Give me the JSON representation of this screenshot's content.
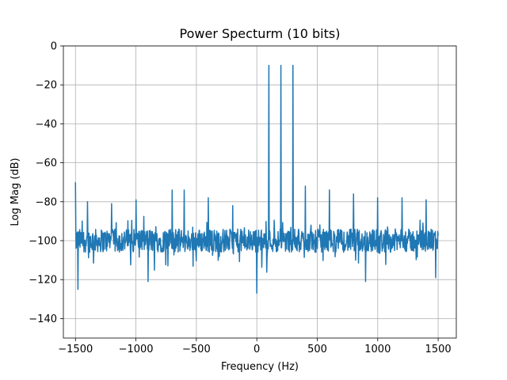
{
  "chart_data": {
    "type": "line",
    "title": "Power Specturm (10 bits)",
    "xlabel": "Frequency (Hz)",
    "ylabel": "Log Mag (dB)",
    "xlim": [
      -1600,
      1650
    ],
    "ylim": [
      -150,
      0
    ],
    "x_ticks": [
      -1500,
      -1000,
      -500,
      0,
      500,
      1000,
      1500
    ],
    "x_tick_labels": [
      "−1500",
      "−1000",
      "−500",
      "0",
      "500",
      "1000",
      "1500"
    ],
    "y_ticks": [
      0,
      -20,
      -40,
      -60,
      -80,
      -100,
      -120,
      -140
    ],
    "y_tick_labels": [
      "0",
      "−20",
      "−40",
      "−60",
      "−80",
      "−100",
      "−120",
      "−140"
    ],
    "grid": true,
    "legend": false,
    "series": [
      {
        "color": "#1f77b4",
        "x_range": [
          -1500,
          1500
        ],
        "noise_floor_db": -100,
        "peaks": [
          {
            "x": 100,
            "y": -10
          },
          {
            "x": 200,
            "y": -10
          },
          {
            "x": 300,
            "y": -10
          },
          {
            "x": -1500,
            "y": -70
          },
          {
            "x": -1400,
            "y": -80
          },
          {
            "x": -1200,
            "y": -81
          },
          {
            "x": -1000,
            "y": -79
          },
          {
            "x": -700,
            "y": -74
          },
          {
            "x": -600,
            "y": -74
          },
          {
            "x": -400,
            "y": -78
          },
          {
            "x": -200,
            "y": -82
          },
          {
            "x": 400,
            "y": -72
          },
          {
            "x": 600,
            "y": -74
          },
          {
            "x": 800,
            "y": -76
          },
          {
            "x": 1000,
            "y": -78
          },
          {
            "x": 1200,
            "y": -78
          },
          {
            "x": 1400,
            "y": -79
          }
        ],
        "dips": [
          {
            "x": -1480,
            "y": -125
          },
          {
            "x": -1200,
            "y": -127
          },
          {
            "x": -900,
            "y": -121
          },
          {
            "x": -600,
            "y": -127
          },
          {
            "x": -400,
            "y": -120
          },
          {
            "x": 0,
            "y": -127
          },
          {
            "x": 300,
            "y": -124
          },
          {
            "x": 600,
            "y": -127
          },
          {
            "x": 900,
            "y": -121
          },
          {
            "x": 1200,
            "y": -127
          },
          {
            "x": 1480,
            "y": -119
          }
        ]
      }
    ]
  }
}
